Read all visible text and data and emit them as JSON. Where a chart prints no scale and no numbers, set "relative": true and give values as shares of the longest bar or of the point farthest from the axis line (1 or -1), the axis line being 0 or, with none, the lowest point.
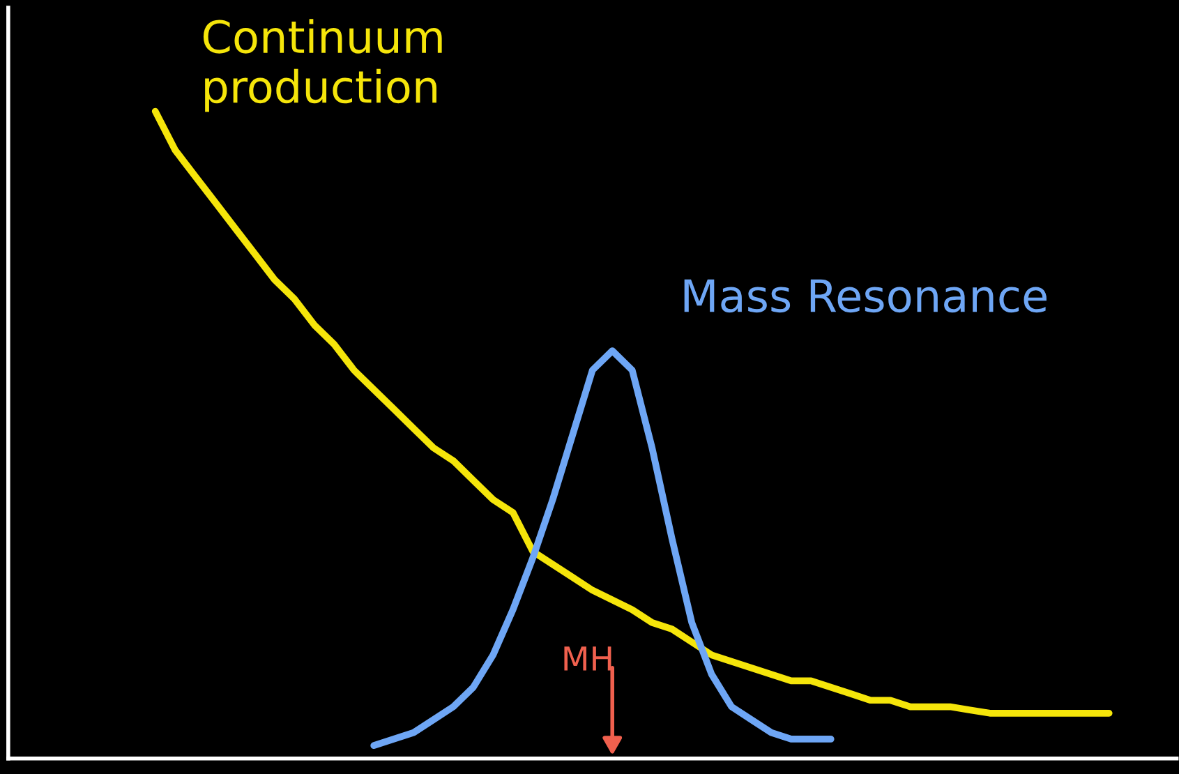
{
  "chart_data": {
    "type": "line",
    "relative": true,
    "categories": [
      null,
      null,
      null,
      null,
      null,
      null,
      null,
      null,
      null,
      null,
      null,
      null,
      null,
      null,
      null,
      null,
      null,
      null,
      null,
      null,
      null,
      null,
      null,
      null,
      null,
      null,
      null,
      null,
      null,
      null,
      null,
      null,
      null,
      null,
      null,
      null,
      null,
      null,
      null,
      null,
      null,
      null,
      null,
      null,
      null,
      null,
      null,
      null,
      null,
      null,
      null,
      null,
      null,
      null,
      null,
      null,
      null,
      null,
      null
    ],
    "series": [
      {
        "name": "Continuum production",
        "color": "#f5e50a",
        "values": [
          null,
          null,
          null,
          null,
          null,
          null,
          null,
          1.0,
          0.94,
          0.9,
          0.86,
          0.82,
          0.78,
          0.74,
          0.71,
          0.67,
          0.64,
          0.6,
          0.57,
          0.54,
          0.51,
          0.48,
          0.46,
          0.43,
          0.4,
          0.38,
          0.32,
          0.3,
          0.28,
          0.26,
          0.245,
          0.23,
          0.21,
          0.2,
          0.18,
          0.16,
          0.15,
          0.14,
          0.13,
          0.12,
          0.12,
          0.11,
          0.1,
          0.09,
          0.09,
          0.08,
          0.08,
          0.08,
          0.075,
          0.07,
          0.07,
          0.07,
          0.07,
          0.07,
          0.07,
          0.07,
          null,
          null,
          null
        ]
      },
      {
        "name": "Mass Resonance",
        "color": "#6ea6f5",
        "values": [
          null,
          null,
          null,
          null,
          null,
          null,
          null,
          null,
          null,
          null,
          null,
          null,
          null,
          null,
          null,
          null,
          null,
          null,
          0.02,
          0.03,
          0.04,
          0.06,
          0.08,
          0.11,
          0.16,
          0.23,
          0.31,
          0.4,
          0.5,
          0.6,
          0.63,
          0.6,
          0.48,
          0.34,
          0.21,
          0.13,
          0.08,
          0.06,
          0.04,
          0.03,
          0.03,
          0.03,
          null,
          null,
          null,
          null,
          null,
          null,
          null,
          null,
          null,
          null,
          null,
          null,
          null,
          null,
          null,
          null,
          null
        ]
      }
    ],
    "annotations": [
      "MH"
    ]
  }
}
